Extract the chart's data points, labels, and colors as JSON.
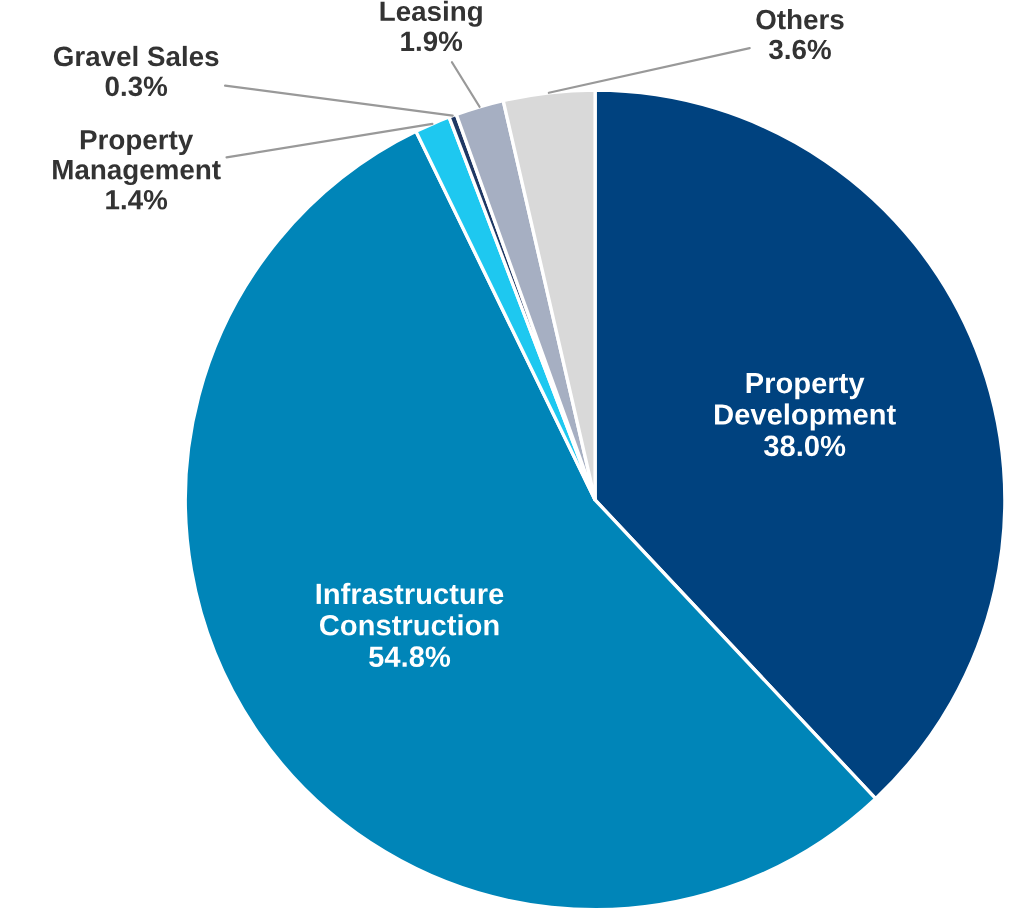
{
  "chart_data": {
    "type": "pie",
    "categories": [
      "Property\nDevelopment",
      "Infrastructure\nConstruction",
      "Property\nManagement",
      "Gravel Sales",
      "Leasing",
      "Others"
    ],
    "values": [
      38.0,
      54.8,
      1.4,
      0.3,
      1.9,
      3.6
    ],
    "colors": [
      "#00427f",
      "#0085b8",
      "#1ec8f0",
      "#1f3864",
      "#a6afc2",
      "#d9d9d9"
    ],
    "value_labels": [
      "38.0%",
      "54.8%",
      "1.4%",
      "0.3%",
      "1.9%",
      "3.6%"
    ],
    "legend": false
  }
}
